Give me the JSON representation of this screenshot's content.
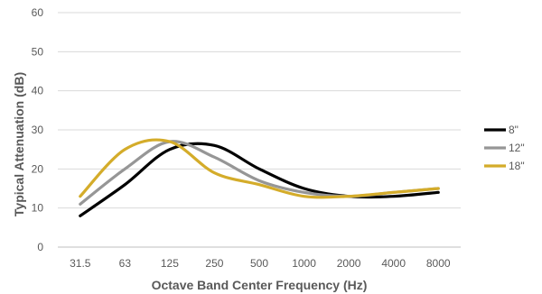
{
  "chart_data": {
    "type": "line",
    "title": "",
    "xlabel": "Octave Band Center Frequency (Hz)",
    "ylabel": "Typical Attenuation (dB)",
    "categories": [
      "31.5",
      "63",
      "125",
      "250",
      "500",
      "1000",
      "2000",
      "4000",
      "8000"
    ],
    "y_ticks": [
      "0",
      "10",
      "20",
      "30",
      "40",
      "50",
      "60"
    ],
    "ylim": [
      0,
      60
    ],
    "grid": true,
    "legend_position": "right",
    "series": [
      {
        "name": "8\"",
        "color": "#000000",
        "values": [
          8,
          16,
          25,
          26,
          20,
          15,
          13,
          13,
          14
        ]
      },
      {
        "name": "12\"",
        "color": "#969696",
        "values": [
          11,
          20,
          27,
          23,
          17,
          14,
          13,
          14,
          15
        ]
      },
      {
        "name": "18\"",
        "color": "#D4AC2A",
        "values": [
          13,
          25,
          27,
          19,
          16,
          13,
          13,
          14,
          15
        ]
      }
    ]
  }
}
